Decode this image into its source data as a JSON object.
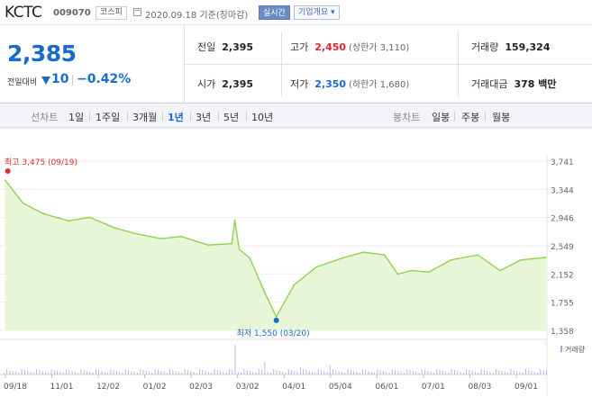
{
  "header": {
    "name": "KCTC",
    "code": "009070",
    "market": "코스피",
    "date": "2020.09.18 기준(장마감)",
    "realtime_label": "실시간",
    "corp_label": "기업개요 ▾"
  },
  "summary": {
    "price": "2,385",
    "change_label": "전일대비",
    "change": "10",
    "rate": "−0.42%",
    "prev_label": "전일",
    "prev": "2,395",
    "high_label": "고가",
    "high": "2,450",
    "upper_limit": "(상한가 3,110)",
    "volume_label": "거래량",
    "volume": "159,324",
    "open_label": "시가",
    "open": "2,395",
    "low_label": "저가",
    "low": "2,350",
    "lower_limit": "(하한가 1,680)",
    "amount_label": "거래대금",
    "amount": "378 백만"
  },
  "toolbar": {
    "line_label": "선차트",
    "periods": [
      "1일",
      "1주일",
      "3개월",
      "1년",
      "3년",
      "5년",
      "10년"
    ],
    "active_period": "1년",
    "candle_label": "봉차트",
    "candles": [
      "일봉",
      "주봉",
      "월봉"
    ]
  },
  "colors": {
    "line": "#8fd14f",
    "fill": "#e6f6d6",
    "up": "#e0262f",
    "down": "#1a6bcc",
    "volume": "#a9a9d3"
  },
  "chart_data": {
    "type": "area",
    "yticks": [
      "3,741",
      "3,344",
      "2,946",
      "2,549",
      "2,152",
      "1,755",
      "1,358"
    ],
    "ylim": [
      1358,
      3741
    ],
    "xticks": [
      "09/18",
      "11/01",
      "12/02",
      "01/02",
      "02/03",
      "03/02",
      "04/01",
      "05/04",
      "06/01",
      "07/01",
      "08/03",
      "09/01"
    ],
    "high_annotation": "최고 3,475 (09/19)",
    "low_annotation": "최저 1,550 (03/20)",
    "volume_legend": "거래량",
    "series": [
      {
        "x": "09/19",
        "y": 3475
      },
      {
        "x": "10/01",
        "y": 3150
      },
      {
        "x": "10/15",
        "y": 3000
      },
      {
        "x": "11/01",
        "y": 2900
      },
      {
        "x": "11/15",
        "y": 2950
      },
      {
        "x": "12/02",
        "y": 2800
      },
      {
        "x": "12/16",
        "y": 2720
      },
      {
        "x": "01/02",
        "y": 2650
      },
      {
        "x": "01/16",
        "y": 2680
      },
      {
        "x": "02/03",
        "y": 2560
      },
      {
        "x": "02/19",
        "y": 2580
      },
      {
        "x": "02/21",
        "y": 2910
      },
      {
        "x": "02/24",
        "y": 2500
      },
      {
        "x": "03/02",
        "y": 2380
      },
      {
        "x": "03/12",
        "y": 1900
      },
      {
        "x": "03/20",
        "y": 1550
      },
      {
        "x": "04/01",
        "y": 2000
      },
      {
        "x": "04/16",
        "y": 2250
      },
      {
        "x": "05/04",
        "y": 2380
      },
      {
        "x": "05/18",
        "y": 2460
      },
      {
        "x": "06/01",
        "y": 2420
      },
      {
        "x": "06/10",
        "y": 2150
      },
      {
        "x": "06/19",
        "y": 2200
      },
      {
        "x": "07/01",
        "y": 2180
      },
      {
        "x": "07/16",
        "y": 2350
      },
      {
        "x": "08/03",
        "y": 2420
      },
      {
        "x": "08/18",
        "y": 2200
      },
      {
        "x": "09/01",
        "y": 2350
      },
      {
        "x": "09/18",
        "y": 2385
      }
    ]
  }
}
